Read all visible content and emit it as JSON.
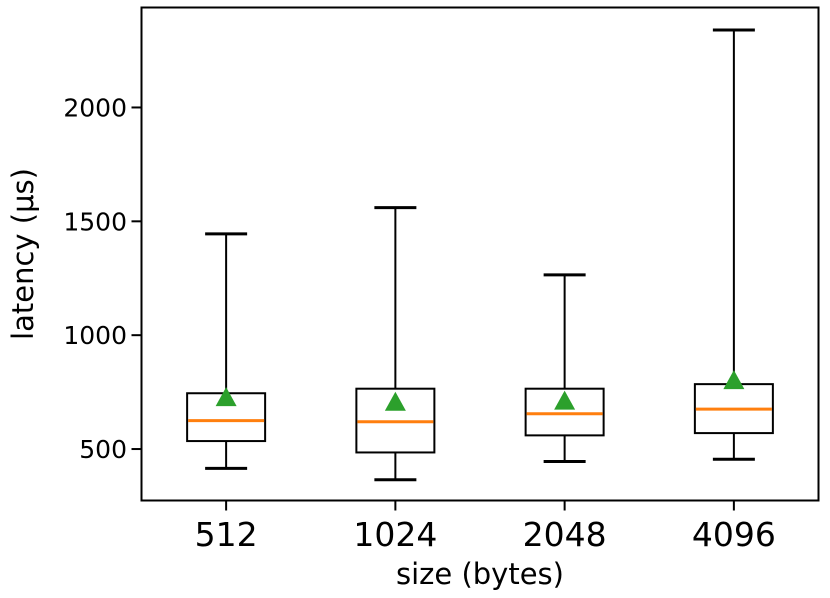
{
  "chart_data": {
    "type": "boxplot",
    "title": "",
    "xlabel": "size (bytes)",
    "ylabel": "latency (μs)",
    "categories": [
      "512",
      "1024",
      "2048",
      "4096"
    ],
    "yticks": [
      500,
      1000,
      1500,
      2000
    ],
    "ylim": [
      274,
      2439
    ],
    "xlim": [
      0.5,
      4.5
    ],
    "grid": false,
    "legend_position": "none",
    "series": [
      {
        "category": "512",
        "whislo": 415,
        "q1": 535,
        "med": 625,
        "q3": 745,
        "whishi": 1445,
        "mean": 730
      },
      {
        "category": "1024",
        "whislo": 365,
        "q1": 485,
        "med": 620,
        "q3": 765,
        "whishi": 1560,
        "mean": 710
      },
      {
        "category": "2048",
        "whislo": 445,
        "q1": 560,
        "med": 655,
        "q3": 765,
        "whishi": 1265,
        "mean": 715
      },
      {
        "category": "4096",
        "whislo": 455,
        "q1": 570,
        "med": 675,
        "q3": 785,
        "whishi": 2340,
        "mean": 805
      }
    ],
    "colors": {
      "box": "#000000",
      "whisker": "#000000",
      "median": "#ff7f0e",
      "mean_marker": "#2ca02c",
      "background": "#ffffff",
      "text": "#000000"
    },
    "marker_styles": {
      "mean": "triangle-up-icon"
    }
  }
}
